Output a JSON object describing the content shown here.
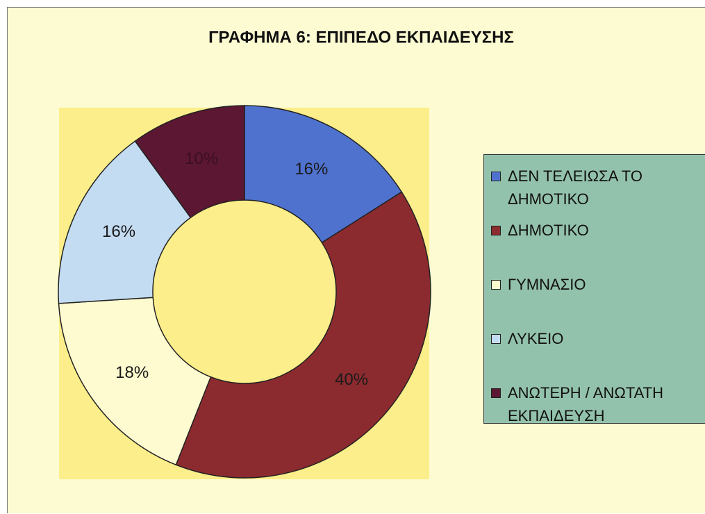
{
  "chart_data": {
    "type": "donut",
    "title": "ΓΡΑΦΗΜΑ 6: ΕΠΙΠΕΔΟ ΕΚΠΑΙΔΕΥΣΗΣ",
    "categories": [
      "ΔΕΝ ΤΕΛΕΙΩΣΑ ΤΟ ΔΗΜΟΤΙΚΟ",
      "ΔΗΜΟΤΙΚΟ",
      "ΓΥΜΝΑΣΙΟ",
      "ΛΥΚΕΙΟ",
      "ΑΝΩΤΕΡΗ / ΑΝΩΤΑΤΗ ΕΚΠΑΙΔΕΥΣΗ"
    ],
    "values": [
      16,
      40,
      18,
      16,
      10
    ],
    "value_labels": [
      "16%",
      "40%",
      "18%",
      "16%",
      "10%"
    ],
    "colors": [
      "#4f72cf",
      "#8c2b2f",
      "#fffbd0",
      "#c4dcf2",
      "#5c1733"
    ],
    "legend": "right"
  }
}
